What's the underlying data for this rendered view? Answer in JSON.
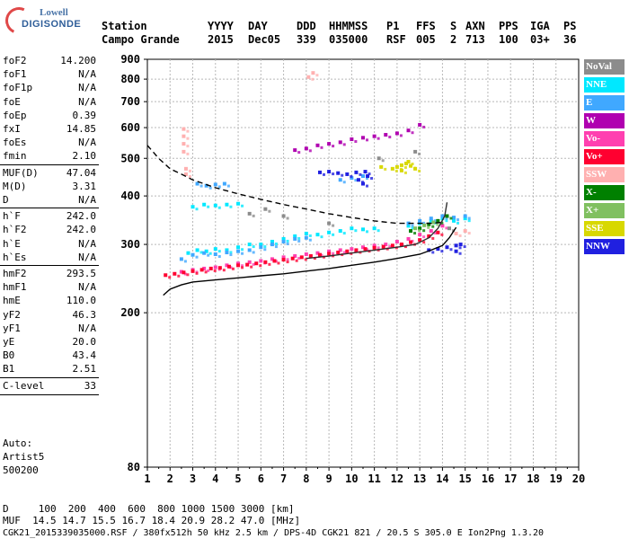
{
  "logo": {
    "top": "Lowell",
    "main": "DIGISONDE"
  },
  "header": {
    "line1": [
      "Station",
      "YYYY",
      "DAY",
      "DDD",
      "HHMMSS",
      "P1",
      "FFS",
      "S",
      "AXN",
      "PPS",
      "IGA",
      "PS"
    ],
    "line2": [
      "Campo Grande",
      "2015",
      "Dec05",
      "339",
      "035000",
      "RSF",
      "005",
      "2",
      "713",
      "100",
      "03+",
      "36"
    ]
  },
  "params": [
    {
      "label": "foF2",
      "value": "14.200"
    },
    {
      "label": "foF1",
      "value": "N/A"
    },
    {
      "label": "foF1p",
      "value": "N/A"
    },
    {
      "label": "foE",
      "value": "N/A"
    },
    {
      "label": "foEp",
      "value": "0.39"
    },
    {
      "label": "fxI",
      "value": "14.85"
    },
    {
      "label": "foEs",
      "value": "N/A"
    },
    {
      "label": "fmin",
      "value": "2.10"
    },
    {
      "label": "MUF(D)",
      "value": "47.04"
    },
    {
      "label": "M(D)",
      "value": "3.31"
    },
    {
      "label": "D",
      "value": "N/A"
    },
    {
      "label": "h`F",
      "value": "242.0"
    },
    {
      "label": "h`F2",
      "value": "242.0"
    },
    {
      "label": "h`E",
      "value": "N/A"
    },
    {
      "label": "h`Es",
      "value": "N/A"
    },
    {
      "label": "hmF2",
      "value": "293.5"
    },
    {
      "label": "hmF1",
      "value": "N/A"
    },
    {
      "label": "hmE",
      "value": "110.0"
    },
    {
      "label": "yF2",
      "value": "46.3"
    },
    {
      "label": "yF1",
      "value": "N/A"
    },
    {
      "label": "yE",
      "value": "20.0"
    },
    {
      "label": "B0",
      "value": "43.4"
    },
    {
      "label": "B1",
      "value": "2.51"
    },
    {
      "label": "C-level",
      "value": "33"
    }
  ],
  "auto": {
    "line1": "Auto:",
    "line2": "Artist5",
    "line3": "500200"
  },
  "legend": [
    {
      "label": "NoVal",
      "color": "#8c8c8c"
    },
    {
      "label": "NNE",
      "color": "#00e8ff"
    },
    {
      "label": "E",
      "color": "#40a8ff"
    },
    {
      "label": "W",
      "color": "#b000b0"
    },
    {
      "label": "Vo-",
      "color": "#ff40b0"
    },
    {
      "label": "Vo+",
      "color": "#ff0030"
    },
    {
      "label": "SSW",
      "color": "#ffb0b0"
    },
    {
      "label": "X-",
      "color": "#008000"
    },
    {
      "label": "X+",
      "color": "#80c060"
    },
    {
      "label": "SSE",
      "color": "#d8d800"
    },
    {
      "label": "NNW",
      "color": "#2020e0"
    }
  ],
  "footer": {
    "d_line": "D     100  200  400  600  800 1000 1500 3000 [km]",
    "muf_line": "MUF  14.5 14.7 15.5 16.7 18.4 20.9 28.2 47.0 [MHz]",
    "file_line": "CGK21_2015339035000.RSF / 380fx512h 50 kHz 2.5 km / DPS-4D CGK21 821 / 20.5 S 305.0 E Ion2Png 1.3.20"
  },
  "chart_data": {
    "type": "scatter",
    "x_ticks": [
      "1",
      "2",
      "3",
      "4",
      "5",
      "6",
      "7",
      "8",
      "9",
      "10",
      "11",
      "12",
      "13",
      "14",
      "15",
      "16",
      "17",
      "18",
      "19",
      "20"
    ],
    "y_ticks": [
      "80",
      "200",
      "300",
      "400",
      "500",
      "600",
      "700",
      "800",
      "900"
    ],
    "xlim": [
      1,
      20
    ],
    "ylim": [
      80,
      900
    ],
    "y_scale": "log",
    "grid": true,
    "series": [
      {
        "name": "NNE",
        "color": "#00e8ff",
        "points": [
          [
            2.8,
            285
          ],
          [
            3.2,
            290
          ],
          [
            3.6,
            288
          ],
          [
            4.0,
            292
          ],
          [
            4.5,
            290
          ],
          [
            5.0,
            295
          ],
          [
            5.5,
            300
          ],
          [
            6.0,
            300
          ],
          [
            6.5,
            305
          ],
          [
            7.0,
            310
          ],
          [
            7.5,
            315
          ],
          [
            8.0,
            320
          ],
          [
            8.5,
            318
          ],
          [
            9.0,
            322
          ],
          [
            9.5,
            325
          ],
          [
            10.0,
            330
          ],
          [
            10.5,
            328
          ],
          [
            11.0,
            330
          ],
          [
            12.5,
            335
          ],
          [
            13.0,
            340
          ],
          [
            13.5,
            345
          ],
          [
            14.0,
            350
          ],
          [
            14.5,
            345
          ],
          [
            15.0,
            350
          ],
          [
            3.0,
            375
          ],
          [
            3.5,
            380
          ],
          [
            4.0,
            378
          ],
          [
            4.5,
            380
          ],
          [
            5.0,
            382
          ]
        ]
      },
      {
        "name": "E",
        "color": "#40a8ff",
        "points": [
          [
            2.5,
            275
          ],
          [
            3.0,
            282
          ],
          [
            3.5,
            285
          ],
          [
            4.0,
            283
          ],
          [
            4.5,
            286
          ],
          [
            5.0,
            288
          ],
          [
            5.5,
            290
          ],
          [
            6.0,
            295
          ],
          [
            6.5,
            300
          ],
          [
            7.0,
            305
          ],
          [
            7.5,
            310
          ],
          [
            8.0,
            312
          ],
          [
            12.5,
            340
          ],
          [
            13.0,
            345
          ],
          [
            13.5,
            350
          ],
          [
            14.0,
            355
          ],
          [
            14.5,
            352
          ],
          [
            15.0,
            355
          ],
          [
            3.2,
            430
          ],
          [
            3.6,
            425
          ],
          [
            4.0,
            428
          ],
          [
            4.4,
            430
          ],
          [
            9.5,
            440
          ],
          [
            10.0,
            445
          ],
          [
            10.5,
            450
          ]
        ]
      },
      {
        "name": "W",
        "color": "#b000b0",
        "points": [
          [
            7.5,
            525
          ],
          [
            8.0,
            530
          ],
          [
            8.5,
            540
          ],
          [
            9.0,
            545
          ],
          [
            9.5,
            550
          ],
          [
            10.0,
            560
          ],
          [
            10.5,
            565
          ],
          [
            11.0,
            570
          ],
          [
            11.5,
            575
          ],
          [
            12.0,
            580
          ],
          [
            12.5,
            590
          ],
          [
            13.0,
            610
          ]
        ]
      },
      {
        "name": "Vo-",
        "color": "#ff40b0",
        "points": [
          [
            2.5,
            255
          ],
          [
            3.0,
            258
          ],
          [
            3.5,
            260
          ],
          [
            4.0,
            262
          ],
          [
            4.5,
            265
          ],
          [
            5.0,
            268
          ],
          [
            5.5,
            270
          ],
          [
            6.0,
            272
          ],
          [
            6.5,
            275
          ],
          [
            7.0,
            278
          ],
          [
            7.5,
            280
          ],
          [
            8.0,
            283
          ],
          [
            8.5,
            285
          ],
          [
            9.0,
            288
          ],
          [
            9.5,
            290
          ],
          [
            10.0,
            292
          ],
          [
            10.5,
            295
          ],
          [
            11.0,
            298
          ],
          [
            11.5,
            300
          ],
          [
            12.0,
            305
          ],
          [
            12.5,
            310
          ],
          [
            13.0,
            318
          ],
          [
            13.5,
            325
          ],
          [
            14.0,
            335
          ]
        ]
      },
      {
        "name": "Vo+",
        "color": "#ff0030",
        "points": [
          [
            1.8,
            250
          ],
          [
            2.2,
            252
          ],
          [
            2.6,
            254
          ],
          [
            3.0,
            256
          ],
          [
            3.4,
            258
          ],
          [
            3.8,
            260
          ],
          [
            4.2,
            261
          ],
          [
            4.6,
            263
          ],
          [
            5.0,
            265
          ],
          [
            5.4,
            266
          ],
          [
            5.8,
            268
          ],
          [
            6.2,
            270
          ],
          [
            6.6,
            272
          ],
          [
            7.0,
            274
          ],
          [
            7.4,
            276
          ],
          [
            7.8,
            278
          ],
          [
            8.2,
            280
          ],
          [
            8.6,
            282
          ],
          [
            9.0,
            284
          ],
          [
            9.4,
            286
          ],
          [
            9.8,
            288
          ],
          [
            10.2,
            290
          ],
          [
            10.6,
            292
          ],
          [
            11.0,
            294
          ],
          [
            11.4,
            296
          ],
          [
            11.8,
            298
          ],
          [
            12.2,
            300
          ],
          [
            12.6,
            304
          ],
          [
            13.0,
            308
          ],
          [
            13.4,
            315
          ],
          [
            13.8,
            322
          ]
        ]
      },
      {
        "name": "SSW",
        "color": "#ffb0b0",
        "points": [
          [
            2.6,
            520
          ],
          [
            2.6,
            545
          ],
          [
            2.6,
            570
          ],
          [
            2.6,
            595
          ],
          [
            2.7,
            455
          ],
          [
            2.7,
            470
          ],
          [
            8.1,
            810
          ],
          [
            8.3,
            830
          ],
          [
            14.6,
            320
          ],
          [
            15.0,
            325
          ]
        ]
      },
      {
        "name": "X-",
        "color": "#008000",
        "points": [
          [
            12.6,
            325
          ],
          [
            13.0,
            330
          ],
          [
            13.4,
            338
          ],
          [
            13.8,
            345
          ],
          [
            14.2,
            355
          ]
        ]
      },
      {
        "name": "X+",
        "color": "#80c060",
        "points": [
          [
            12.8,
            330
          ],
          [
            13.2,
            336
          ],
          [
            13.6,
            342
          ]
        ]
      },
      {
        "name": "SSE",
        "color": "#d8d800",
        "points": [
          [
            11.8,
            470
          ],
          [
            12.0,
            475
          ],
          [
            12.2,
            480
          ],
          [
            12.4,
            485
          ],
          [
            12.6,
            478
          ],
          [
            12.8,
            470
          ],
          [
            12.5,
            490
          ],
          [
            12.2,
            465
          ],
          [
            11.3,
            475
          ]
        ]
      },
      {
        "name": "NNW",
        "color": "#2020e0",
        "points": [
          [
            8.6,
            460
          ],
          [
            9.0,
            462
          ],
          [
            9.4,
            458
          ],
          [
            9.8,
            455
          ],
          [
            10.2,
            460
          ],
          [
            10.6,
            462
          ],
          [
            10.3,
            440
          ],
          [
            10.5,
            430
          ],
          [
            10.7,
            450
          ],
          [
            13.4,
            290
          ],
          [
            13.8,
            292
          ],
          [
            14.2,
            295
          ],
          [
            14.6,
            298
          ],
          [
            14.8,
            300
          ],
          [
            14.6,
            288
          ]
        ]
      },
      {
        "name": "NoVal",
        "color": "#8c8c8c",
        "points": [
          [
            5.5,
            360
          ],
          [
            6.2,
            370
          ],
          [
            7.0,
            355
          ],
          [
            9.0,
            340
          ],
          [
            11.2,
            500
          ],
          [
            12.8,
            520
          ],
          [
            14.3,
            330
          ]
        ]
      }
    ],
    "curves": [
      {
        "kind": "trace",
        "color": "#000000",
        "points": [
          [
            1.7,
            222
          ],
          [
            2.0,
            230
          ],
          [
            2.5,
            236
          ],
          [
            3.0,
            240
          ],
          [
            4.0,
            243
          ],
          [
            5.0,
            246
          ],
          [
            6.0,
            249
          ],
          [
            7.0,
            252
          ],
          [
            8.0,
            256
          ],
          [
            9.0,
            260
          ],
          [
            10.0,
            265
          ],
          [
            11.0,
            270
          ],
          [
            12.0,
            276
          ],
          [
            13.0,
            283
          ],
          [
            13.5,
            290
          ],
          [
            14.0,
            298
          ],
          [
            14.3,
            312
          ],
          [
            14.6,
            332
          ]
        ]
      },
      {
        "kind": "dashed",
        "color": "#000000",
        "points": [
          [
            1.0,
            540
          ],
          [
            1.5,
            500
          ],
          [
            2.0,
            470
          ],
          [
            2.5,
            455
          ],
          [
            3.0,
            440
          ],
          [
            4.0,
            420
          ],
          [
            5.0,
            405
          ],
          [
            6.0,
            392
          ],
          [
            7.0,
            380
          ],
          [
            8.0,
            370
          ],
          [
            9.0,
            360
          ],
          [
            10.0,
            352
          ],
          [
            11.0,
            345
          ],
          [
            12.0,
            340
          ],
          [
            13.0,
            340
          ],
          [
            13.5,
            340
          ],
          [
            14.0,
            342
          ]
        ]
      },
      {
        "kind": "profile",
        "color": "#303030",
        "points": [
          [
            8.0,
            276
          ],
          [
            9.0,
            280
          ],
          [
            10.0,
            285
          ],
          [
            11.0,
            290
          ],
          [
            12.0,
            295
          ],
          [
            12.8,
            300
          ],
          [
            13.4,
            312
          ],
          [
            13.8,
            330
          ],
          [
            14.1,
            355
          ],
          [
            14.2,
            385
          ]
        ]
      }
    ]
  }
}
